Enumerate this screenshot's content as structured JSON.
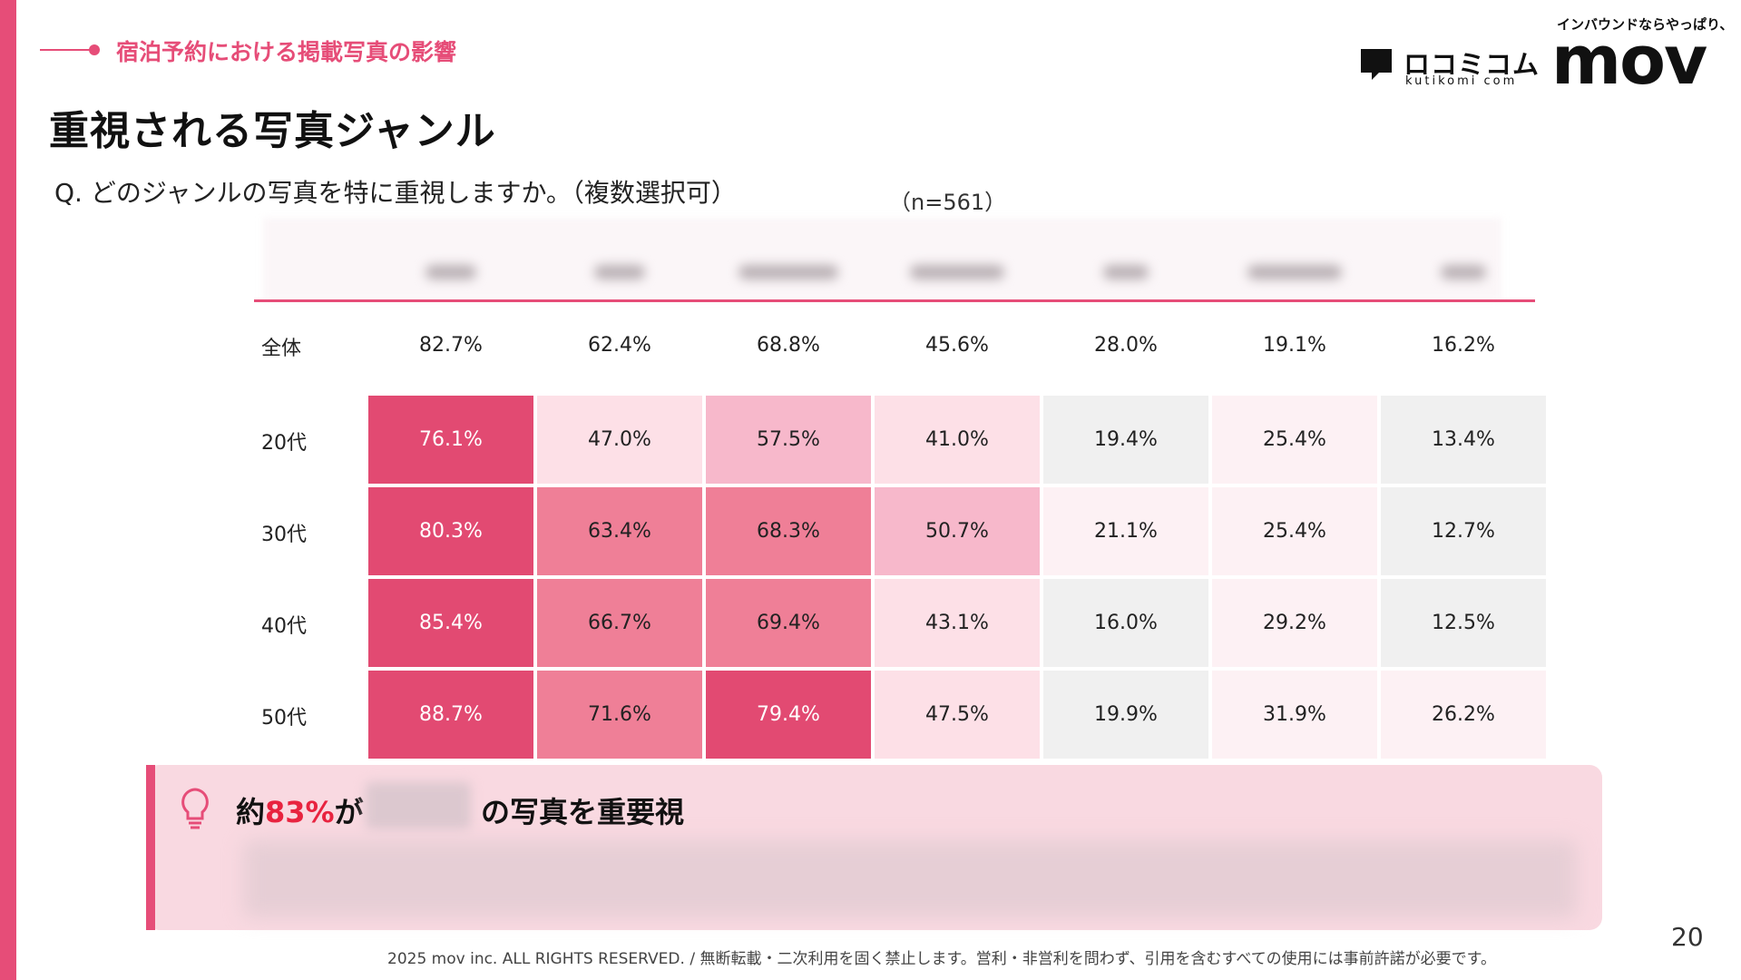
{
  "section": {
    "label": "宿泊予約における掲載写真の影響"
  },
  "title": "重視される写真ジャンル",
  "question": "Q. どのジャンルの写真を特に重視しますか。（複数選択可）",
  "sample_size": "（n=561）",
  "logos": {
    "kutikomi_name": "ロコミコム",
    "kutikomi_sub": "kutikomi com",
    "mov_tagline": "インバウンドならやっぱり、",
    "mov_name": "mov"
  },
  "colors": {
    "accent": "#e64d78",
    "highlight_text": "#e8233f",
    "cell_scale": [
      "#f0f0f0",
      "#fdf1f4",
      "#fde0e7",
      "#f7b8cb",
      "#ef7f97",
      "#e24a72"
    ]
  },
  "chart_data": {
    "type": "heatmap",
    "columns": [
      "",
      "",
      "",
      "",
      "",
      "",
      ""
    ],
    "total_row": {
      "label": "全体",
      "values": [
        "82.7%",
        "62.4%",
        "68.8%",
        "45.6%",
        "28.0%",
        "19.1%",
        "16.2%"
      ]
    },
    "rows": [
      {
        "label": "20代",
        "values": [
          "76.1%",
          "47.0%",
          "57.5%",
          "41.0%",
          "19.4%",
          "25.4%",
          "13.4%"
        ],
        "numeric": [
          76.1,
          47.0,
          57.5,
          41.0,
          19.4,
          25.4,
          13.4
        ]
      },
      {
        "label": "30代",
        "values": [
          "80.3%",
          "63.4%",
          "68.3%",
          "50.7%",
          "21.1%",
          "25.4%",
          "12.7%"
        ],
        "numeric": [
          80.3,
          63.4,
          68.3,
          50.7,
          21.1,
          25.4,
          12.7
        ]
      },
      {
        "label": "40代",
        "values": [
          "85.4%",
          "66.7%",
          "69.4%",
          "43.1%",
          "16.0%",
          "29.2%",
          "12.5%"
        ],
        "numeric": [
          85.4,
          66.7,
          69.4,
          43.1,
          16.0,
          29.2,
          12.5
        ]
      },
      {
        "label": "50代",
        "values": [
          "88.7%",
          "71.6%",
          "79.4%",
          "47.5%",
          "19.9%",
          "31.9%",
          "26.2%"
        ],
        "numeric": [
          88.7,
          71.6,
          79.4,
          47.5,
          19.9,
          31.9,
          26.2
        ]
      }
    ]
  },
  "insight": {
    "prefix": "約",
    "highlight": "83%",
    "suffix": "が",
    "rest": "の写真を重要視"
  },
  "footer": "2025 mov inc. ALL RIGHTS RESERVED. / 無断転載・二次利用を固く禁止します。営利・非営利を問わず、引用を含むすべての使用には事前許諾が必要です。",
  "page_number": "20"
}
